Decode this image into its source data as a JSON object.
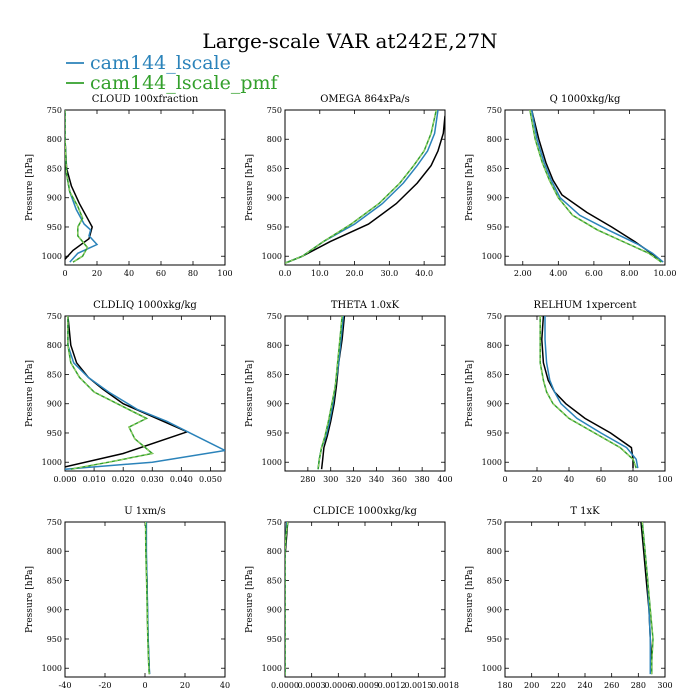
{
  "title": "Large-scale VAR at242E,27N",
  "legend": [
    {
      "name": "cam144_lscale",
      "color": "#2b83ba"
    },
    {
      "name": "cam144_lscale_pmf",
      "color": "#33a02c"
    }
  ],
  "colors": {
    "black": "#000000",
    "blue": "#2b83ba",
    "green": "#33a02c",
    "green_dash": "#a6d96a"
  },
  "chart_data": [
    {
      "type": "line",
      "title": "CLOUD  100xfraction",
      "ylabel": "Pressure [hPa]",
      "xlim": [
        0,
        100
      ],
      "ylim": [
        1015,
        750
      ],
      "xticks": [
        0,
        20,
        40,
        60,
        80,
        100
      ],
      "xtick_labels": [
        "0",
        "20",
        "40",
        "60",
        "80",
        "100"
      ],
      "yticks": [
        750,
        800,
        850,
        900,
        950,
        1000
      ],
      "series": [
        {
          "color": "black",
          "x": [
            0,
            0,
            1,
            4,
            9,
            14,
            17,
            15,
            5,
            0
          ],
          "y": [
            750,
            800,
            850,
            880,
            910,
            935,
            950,
            970,
            990,
            1005
          ]
        },
        {
          "color": "blue",
          "x": [
            0,
            0,
            1,
            3,
            7,
            12,
            16,
            15,
            20,
            8,
            3
          ],
          "y": [
            750,
            800,
            860,
            890,
            920,
            945,
            955,
            965,
            980,
            995,
            1010
          ]
        },
        {
          "color": "green",
          "x": [
            0,
            0,
            1,
            3,
            8,
            11,
            8,
            8,
            11,
            14,
            11,
            5
          ],
          "y": [
            750,
            800,
            860,
            890,
            915,
            935,
            950,
            965,
            975,
            985,
            1000,
            1010
          ]
        }
      ]
    },
    {
      "type": "line",
      "title": "OMEGA  864xPa/s",
      "ylabel": "Pressure [hPa]",
      "xlim": [
        0,
        46
      ],
      "ylim": [
        1015,
        750
      ],
      "xticks": [
        0,
        10,
        20,
        30,
        40
      ],
      "xtick_labels": [
        "0.0",
        "10.0",
        "20.0",
        "30.0",
        "40.0"
      ],
      "yticks": [
        750,
        800,
        850,
        900,
        950,
        1000
      ],
      "series": [
        {
          "color": "black",
          "x": [
            0,
            5,
            13,
            24,
            32,
            38,
            42,
            44,
            45.5,
            46
          ],
          "y": [
            1012,
            1000,
            975,
            945,
            910,
            875,
            845,
            820,
            790,
            760
          ]
        },
        {
          "color": "blue",
          "x": [
            0,
            5,
            11,
            20,
            28,
            34,
            38,
            41,
            43,
            44
          ],
          "y": [
            1012,
            1000,
            975,
            945,
            910,
            875,
            845,
            820,
            790,
            750
          ]
        },
        {
          "color": "green",
          "x": [
            0,
            5,
            11,
            19,
            27,
            33,
            37,
            40,
            42,
            43.5
          ],
          "y": [
            1012,
            1000,
            975,
            945,
            910,
            875,
            845,
            820,
            790,
            750
          ]
        }
      ]
    },
    {
      "type": "line",
      "title": "Q  1000xkg/kg",
      "ylabel": "Pressure [hPa]",
      "xlim": [
        1,
        10
      ],
      "ylim": [
        1015,
        750
      ],
      "xticks": [
        2,
        4,
        6,
        8,
        10
      ],
      "xtick_labels": [
        "2.00",
        "4.00",
        "6.00",
        "8.00",
        "10.00"
      ],
      "yticks": [
        750,
        800,
        850,
        900,
        950,
        1000
      ],
      "series": [
        {
          "color": "black",
          "x": [
            2.5,
            2.9,
            3.3,
            3.7,
            4.2,
            5.6,
            7.0,
            8.3,
            9.0,
            9.6
          ],
          "y": [
            750,
            800,
            840,
            870,
            895,
            925,
            950,
            975,
            990,
            1005
          ]
        },
        {
          "color": "blue",
          "x": [
            2.5,
            2.8,
            3.2,
            3.6,
            4.1,
            5.2,
            6.8,
            8.5,
            9.3,
            9.9
          ],
          "y": [
            750,
            800,
            840,
            870,
            900,
            930,
            955,
            980,
            995,
            1010
          ]
        },
        {
          "color": "green",
          "x": [
            2.4,
            2.7,
            3.1,
            3.5,
            4.0,
            4.8,
            6.2,
            8.0,
            9.1,
            9.8
          ],
          "y": [
            750,
            800,
            840,
            870,
            900,
            930,
            955,
            980,
            995,
            1010
          ]
        }
      ]
    },
    {
      "type": "line",
      "title": "CLDLIQ  1000xkg/kg",
      "ylabel": "Pressure [hPa]",
      "xlim": [
        0,
        0.055
      ],
      "ylim": [
        1015,
        750
      ],
      "xticks": [
        0,
        0.01,
        0.02,
        0.03,
        0.04,
        0.05
      ],
      "xtick_labels": [
        "0.000",
        "0.010",
        "0.020",
        "0.030",
        "0.040",
        "0.050"
      ],
      "yticks": [
        750,
        800,
        850,
        900,
        950,
        1000
      ],
      "series": [
        {
          "color": "black",
          "x": [
            0.001,
            0.002,
            0.004,
            0.008,
            0.013,
            0.02,
            0.042,
            0.02,
            0.0
          ],
          "y": [
            750,
            800,
            830,
            855,
            875,
            900,
            948,
            985,
            1008
          ]
        },
        {
          "color": "blue",
          "x": [
            0.001,
            0.001,
            0.003,
            0.008,
            0.015,
            0.025,
            0.035,
            0.045,
            0.055,
            0.03,
            0.0
          ],
          "y": [
            750,
            800,
            830,
            855,
            880,
            910,
            930,
            955,
            980,
            1000,
            1012
          ]
        },
        {
          "color": "green",
          "x": [
            0.001,
            0.001,
            0.002,
            0.005,
            0.01,
            0.02,
            0.028,
            0.022,
            0.024,
            0.03,
            0.015,
            0.002
          ],
          "y": [
            750,
            800,
            830,
            855,
            880,
            905,
            925,
            940,
            960,
            985,
            1000,
            1012
          ]
        }
      ]
    },
    {
      "type": "line",
      "title": "THETA  1.0xK",
      "ylabel": "Pressure [hPa]",
      "xlim": [
        260,
        400
      ],
      "ylim": [
        1015,
        750
      ],
      "xticks": [
        280,
        300,
        320,
        340,
        360,
        380,
        400
      ],
      "xtick_labels": [
        "280",
        "300",
        "320",
        "340",
        "360",
        "380",
        "400"
      ],
      "yticks": [
        750,
        800,
        850,
        900,
        950,
        1000
      ],
      "series": [
        {
          "color": "black",
          "x": [
            312,
            310,
            307,
            305,
            303,
            300,
            297,
            294,
            293,
            292
          ],
          "y": [
            750,
            790,
            830,
            870,
            900,
            930,
            955,
            975,
            995,
            1012
          ]
        },
        {
          "color": "blue",
          "x": [
            311,
            309,
            307,
            304,
            302,
            299,
            296,
            292,
            290,
            289
          ],
          "y": [
            750,
            790,
            830,
            870,
            900,
            930,
            955,
            975,
            995,
            1012
          ]
        },
        {
          "color": "green",
          "x": [
            310,
            308,
            306,
            304,
            301,
            298,
            295,
            292,
            290,
            289
          ],
          "y": [
            750,
            790,
            830,
            870,
            900,
            930,
            955,
            975,
            995,
            1012
          ]
        }
      ]
    },
    {
      "type": "line",
      "title": "RELHUM  1xpercent",
      "ylabel": "Pressure [hPa]",
      "xlim": [
        0,
        100
      ],
      "ylim": [
        1015,
        750
      ],
      "xticks": [
        0,
        20,
        40,
        60,
        80,
        100
      ],
      "xtick_labels": [
        "0",
        "20",
        "40",
        "60",
        "80",
        "100"
      ],
      "yticks": [
        750,
        800,
        850,
        900,
        950,
        1000
      ],
      "series": [
        {
          "color": "black",
          "x": [
            24,
            23,
            24,
            27,
            31,
            38,
            50,
            66,
            79,
            80,
            80
          ],
          "y": [
            750,
            790,
            830,
            860,
            880,
            900,
            925,
            950,
            975,
            995,
            1010
          ]
        },
        {
          "color": "blue",
          "x": [
            25,
            25,
            26,
            28,
            31,
            35,
            45,
            60,
            76,
            82,
            83
          ],
          "y": [
            750,
            790,
            830,
            860,
            880,
            900,
            925,
            950,
            975,
            995,
            1010
          ]
        },
        {
          "color": "green",
          "x": [
            22,
            22,
            22,
            24,
            26,
            30,
            40,
            56,
            72,
            80,
            82
          ],
          "y": [
            750,
            790,
            830,
            860,
            880,
            900,
            925,
            950,
            975,
            995,
            1010
          ]
        }
      ]
    },
    {
      "type": "line",
      "title": "U  1xm/s",
      "ylabel": "Pressure [hPa]",
      "xlim": [
        -40,
        40
      ],
      "ylim": [
        1015,
        750
      ],
      "xticks": [
        -40,
        -20,
        0,
        20,
        40
      ],
      "xtick_labels": [
        "-40",
        "-20",
        "0",
        "20",
        "40"
      ],
      "yticks": [
        750,
        800,
        850,
        900,
        950,
        1000
      ],
      "series": [
        {
          "color": "black",
          "x": [
            0.5,
            0.5,
            1.0,
            1.2,
            1.5,
            2.0,
            2.2
          ],
          "y": [
            750,
            800,
            850,
            900,
            950,
            990,
            1010
          ]
        },
        {
          "color": "blue",
          "x": [
            0.7,
            0.7,
            1.0,
            1.3,
            1.6,
            2.0,
            2.3
          ],
          "y": [
            750,
            800,
            850,
            900,
            950,
            990,
            1010
          ]
        },
        {
          "color": "green",
          "x": [
            0.3,
            0.4,
            0.8,
            1.1,
            1.4,
            1.8,
            2.1
          ],
          "y": [
            750,
            800,
            850,
            900,
            950,
            990,
            1010
          ]
        }
      ]
    },
    {
      "type": "line",
      "title": "CLDICE  1000xkg/kg",
      "ylabel": "Pressure [hPa]",
      "xlim": [
        0,
        0.0018
      ],
      "ylim": [
        1015,
        750
      ],
      "xticks": [
        0,
        0.0003,
        0.0006,
        0.0009,
        0.0012,
        0.0015,
        0.0018
      ],
      "xtick_labels": [
        "0.0000",
        "0.0003",
        "0.0006",
        "0.0009",
        "0.0012",
        "0.0015",
        "0.0018"
      ],
      "yticks": [
        750,
        800,
        850,
        900,
        950,
        1000
      ],
      "series": [
        {
          "color": "black",
          "x": [
            3e-05,
            2e-05,
            1e-05,
            0.0,
            0.0
          ],
          "y": [
            750,
            770,
            790,
            810,
            1012
          ]
        },
        {
          "color": "blue",
          "x": [
            2e-05,
            1e-05,
            0.0,
            0.0
          ],
          "y": [
            750,
            775,
            800,
            1012
          ]
        },
        {
          "color": "green",
          "x": [
            3e-05,
            1e-05,
            0.0,
            0.0
          ],
          "y": [
            750,
            775,
            800,
            1012
          ]
        }
      ]
    },
    {
      "type": "line",
      "title": "T  1xK",
      "ylabel": "Pressure [hPa]",
      "xlim": [
        180,
        300
      ],
      "ylim": [
        1015,
        750
      ],
      "xticks": [
        180,
        200,
        220,
        240,
        260,
        280,
        300
      ],
      "xtick_labels": [
        "180",
        "200",
        "220",
        "240",
        "260",
        "280",
        "300"
      ],
      "yticks": [
        750,
        800,
        850,
        900,
        950,
        1000
      ],
      "series": [
        {
          "color": "black",
          "x": [
            282,
            284,
            286,
            288,
            289,
            290,
            290
          ],
          "y": [
            750,
            800,
            850,
            900,
            950,
            990,
            1010
          ]
        },
        {
          "color": "blue",
          "x": [
            283,
            285,
            287,
            288,
            289,
            289,
            289
          ],
          "y": [
            750,
            800,
            850,
            900,
            950,
            990,
            1010
          ]
        },
        {
          "color": "green",
          "x": [
            283,
            285,
            287,
            289,
            291,
            290,
            290
          ],
          "y": [
            750,
            800,
            850,
            900,
            950,
            990,
            1010
          ]
        }
      ]
    }
  ]
}
